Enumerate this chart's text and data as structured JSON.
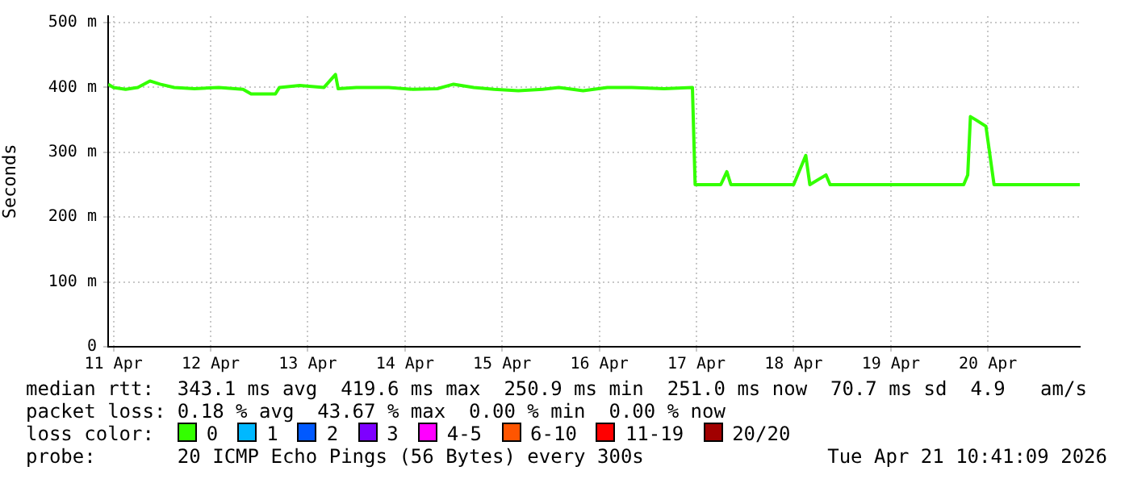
{
  "chart_data": {
    "type": "line",
    "ylabel": "Seconds",
    "legend": "bottom",
    "legend_title": "loss color:",
    "grid": true,
    "xlim": [
      "2026-04-11T10:41",
      "2026-04-21T10:41"
    ],
    "xticks": [
      {
        "value": "2026-04-11T12:00",
        "label": "11 Apr"
      },
      {
        "value": "2026-04-12T12:00",
        "label": "12 Apr"
      },
      {
        "value": "2026-04-13T12:00",
        "label": "13 Apr"
      },
      {
        "value": "2026-04-14T12:00",
        "label": "14 Apr"
      },
      {
        "value": "2026-04-15T12:00",
        "label": "15 Apr"
      },
      {
        "value": "2026-04-16T12:00",
        "label": "16 Apr"
      },
      {
        "value": "2026-04-17T12:00",
        "label": "17 Apr"
      },
      {
        "value": "2026-04-18T12:00",
        "label": "18 Apr"
      },
      {
        "value": "2026-04-19T12:00",
        "label": "19 Apr"
      },
      {
        "value": "2026-04-20T12:00",
        "label": "20 Apr"
      }
    ],
    "ylim": [
      0,
      510
    ],
    "yticks": [
      0,
      {
        "value": 100,
        "label": "100 m"
      },
      {
        "value": 200,
        "label": "200 m"
      },
      {
        "value": 300,
        "label": "300 m"
      },
      {
        "value": 400,
        "label": "400 m"
      },
      {
        "value": 500,
        "label": "500 m"
      }
    ],
    "series": [
      {
        "name": "0",
        "color": "#33ff00",
        "x": [
          "2026-04-11T10:41",
          "2026-04-11T12:00",
          "2026-04-11T15:00",
          "2026-04-11T18:00",
          "2026-04-11T21:00",
          "2026-04-11T23:30",
          "2026-04-12T03:00",
          "2026-04-12T08:00",
          "2026-04-12T14:00",
          "2026-04-12T20:00",
          "2026-04-12T22:00",
          "2026-04-13T04:00",
          "2026-04-13T05:00",
          "2026-04-13T10:00",
          "2026-04-13T16:00",
          "2026-04-13T18:50",
          "2026-04-13T19:30",
          "2026-04-14T00:00",
          "2026-04-14T08:00",
          "2026-04-14T14:00",
          "2026-04-14T20:00",
          "2026-04-15T00:00",
          "2026-04-15T05:00",
          "2026-04-15T10:00",
          "2026-04-15T16:00",
          "2026-04-15T22:00",
          "2026-04-16T02:00",
          "2026-04-16T08:00",
          "2026-04-16T14:00",
          "2026-04-16T20:00",
          "2026-04-17T04:00",
          "2026-04-17T11:00",
          "2026-04-17T11:40",
          "2026-04-17T18:00",
          "2026-04-17T19:30",
          "2026-04-17T20:30",
          "2026-04-18T06:00",
          "2026-04-18T12:00",
          "2026-04-18T15:00",
          "2026-04-18T16:00",
          "2026-04-18T20:00",
          "2026-04-18T21:00",
          "2026-04-19T06:00",
          "2026-04-19T12:00",
          "2026-04-20T00:00",
          "2026-04-20T06:00",
          "2026-04-20T07:00",
          "2026-04-20T07:40",
          "2026-04-20T09:00",
          "2026-04-20T11:30",
          "2026-04-20T13:30",
          "2026-04-20T20:00",
          "2026-04-21T04:00",
          "2026-04-21T10:41"
        ],
        "values": [
          405,
          400,
          397,
          400,
          410,
          405,
          400,
          398,
          400,
          397,
          390,
          390,
          400,
          403,
          400,
          420,
          398,
          400,
          400,
          397,
          398,
          405,
          400,
          397,
          395,
          397,
          400,
          395,
          400,
          400,
          398,
          400,
          250,
          250,
          270,
          250,
          250,
          250,
          295,
          250,
          265,
          250,
          250,
          250,
          250,
          250,
          265,
          355,
          350,
          340,
          250,
          250,
          250,
          250
        ]
      },
      {
        "name": "1",
        "color": "#00b8ff"
      },
      {
        "name": "2",
        "color": "#0059ff"
      },
      {
        "name": "3",
        "color": "#7e00ff"
      },
      {
        "name": "4-5",
        "color": "#ff00ff"
      },
      {
        "name": "6-10",
        "color": "#ff5500"
      },
      {
        "name": "11-19",
        "color": "#ff0000"
      },
      {
        "name": "20/20",
        "color": "#a10000"
      }
    ],
    "annotations": [
      "median rtt:  343.1 ms avg  419.6 ms max  250.9 ms min  251.0 ms now  70.7 ms sd  4.9   am/s",
      "packet loss: 0.18 % avg  43.67 % max  0.00 % min  0.00 % now",
      "probe:       20 ICMP Echo Pings (56 Bytes) every 300s",
      "Tue Apr 21 10:41:09 2026"
    ]
  }
}
